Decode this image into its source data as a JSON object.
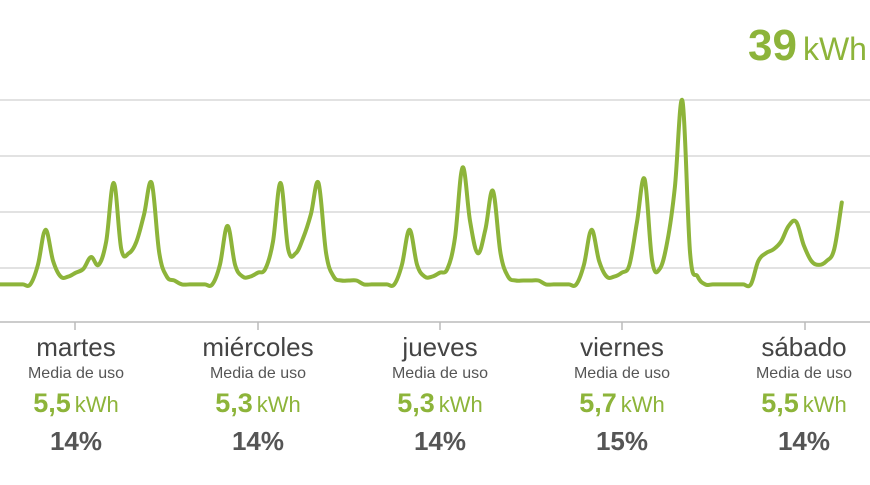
{
  "total": {
    "value": "39",
    "unit": "kWh"
  },
  "colors": {
    "accent": "#8db43a",
    "grid": "#d9d9d9",
    "text_dark": "#444444",
    "text_muted": "#555555"
  },
  "days": [
    {
      "name": "martes",
      "subtitle": "Media de uso",
      "value": "5,5",
      "unit": "kWh",
      "percent": "14%"
    },
    {
      "name": "miércoles",
      "subtitle": "Media de uso",
      "value": "5,3",
      "unit": "kWh",
      "percent": "14%"
    },
    {
      "name": "jueves",
      "subtitle": "Media de uso",
      "value": "5,3",
      "unit": "kWh",
      "percent": "14%"
    },
    {
      "name": "viernes",
      "subtitle": "Media de uso",
      "value": "5,7",
      "unit": "kWh",
      "percent": "15%"
    },
    {
      "name": "sábado",
      "subtitle": "Media de uso",
      "value": "5,5",
      "unit": "kWh",
      "percent": "14%"
    }
  ],
  "chart_data": {
    "type": "line",
    "grid": true,
    "series": [
      {
        "values": [
          0.4,
          0.4,
          0.4,
          0.4,
          0.4,
          0.9,
          1.8,
          1.0,
          0.6,
          0.6,
          0.7,
          0.8,
          1.1,
          0.9,
          1.5,
          3.0,
          1.3,
          1.2,
          1.5,
          2.2,
          3.0,
          1.2,
          0.6,
          0.5,
          0.4,
          0.4,
          0.4,
          0.4,
          0.4,
          0.9,
          1.9,
          0.9,
          0.6,
          0.6,
          0.7,
          0.8,
          1.5,
          3.0,
          1.3,
          1.2,
          1.6,
          2.2,
          3.0,
          1.2,
          0.6,
          0.5,
          0.5,
          0.5,
          0.4,
          0.4,
          0.4,
          0.4,
          0.4,
          0.9,
          1.8,
          0.9,
          0.6,
          0.6,
          0.7,
          0.8,
          1.6,
          3.4,
          2.0,
          1.2,
          1.8,
          2.8,
          1.2,
          0.6,
          0.5,
          0.5,
          0.5,
          0.5,
          0.4,
          0.4,
          0.4,
          0.4,
          0.4,
          0.9,
          1.8,
          1.0,
          0.6,
          0.6,
          0.7,
          0.9,
          2.0,
          3.1,
          1.0,
          0.8,
          1.5,
          2.9,
          5.1,
          1.2,
          0.6,
          0.4,
          0.4,
          0.4,
          0.4,
          0.4,
          0.4,
          0.4,
          1.0,
          1.2,
          1.3,
          1.5,
          1.9,
          2.0,
          1.4,
          1.0,
          0.9,
          1.0,
          1.3,
          2.5
        ]
      }
    ]
  }
}
